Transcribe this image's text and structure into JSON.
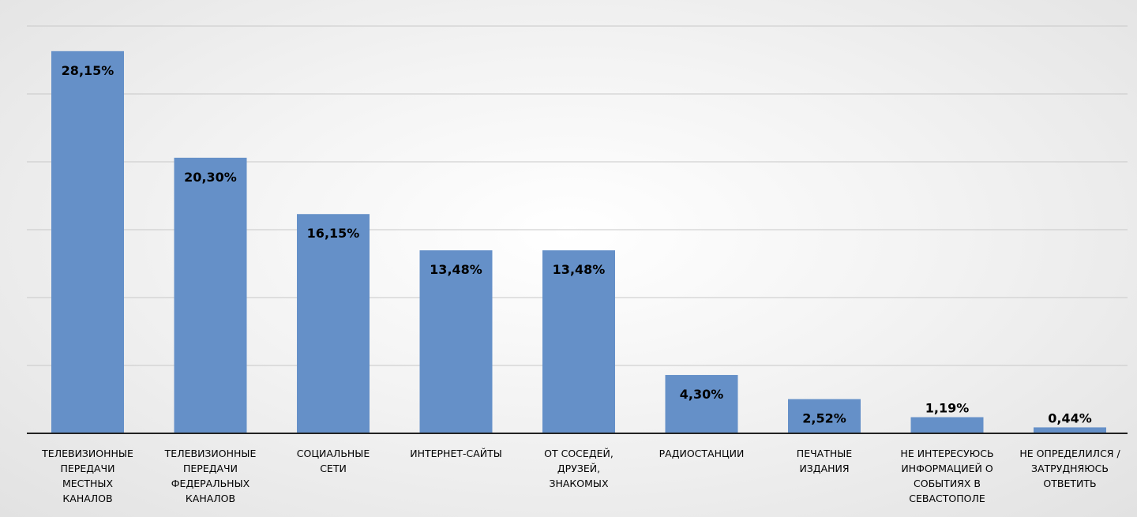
{
  "chart_data": {
    "type": "bar",
    "categories": [
      "ТЕЛЕВИЗИОННЫЕ\nПЕРЕДАЧИ\nМЕСТНЫХ\nКАНАЛОВ",
      "ТЕЛЕВИЗИОННЫЕ\nПЕРЕДАЧИ\nФЕДЕРАЛЬНЫХ\nКАНАЛОВ",
      "СОЦИАЛЬНЫЕ\nСЕТИ",
      "ИНТЕРНЕТ-САЙТЫ",
      "ОТ СОСЕДЕЙ,\nДРУЗЕЙ,\nЗНАКОМЫХ",
      "РАДИОСТАНЦИИ",
      "ПЕЧАТНЫЕ\nИЗДАНИЯ",
      "НЕ ИНТЕРЕСУЮСЬ\nИНФОРМАЦИЕЙ О\nСОБЫТИЯХ В\nСЕВАСТОПОЛЕ",
      "НЕ ОПРЕДЕЛИЛСЯ /\nЗАТРУДНЯЮСЬ\nОТВЕТИТЬ"
    ],
    "values": [
      28.15,
      20.3,
      16.15,
      13.48,
      13.48,
      4.3,
      2.52,
      1.19,
      0.44
    ],
    "data_labels": [
      "28,15%",
      "20,30%",
      "16,15%",
      "13,48%",
      "13,48%",
      "4,30%",
      "2,52%",
      "1,19%",
      "0,44%"
    ],
    "ylim": [
      0,
      30
    ],
    "gridlines": [
      5,
      10,
      15,
      20,
      25,
      30
    ],
    "grid": true,
    "legend": "none",
    "bar_color": "#6590c8",
    "axis_color": "#222222",
    "gridline_color": "#c8c8c8"
  }
}
